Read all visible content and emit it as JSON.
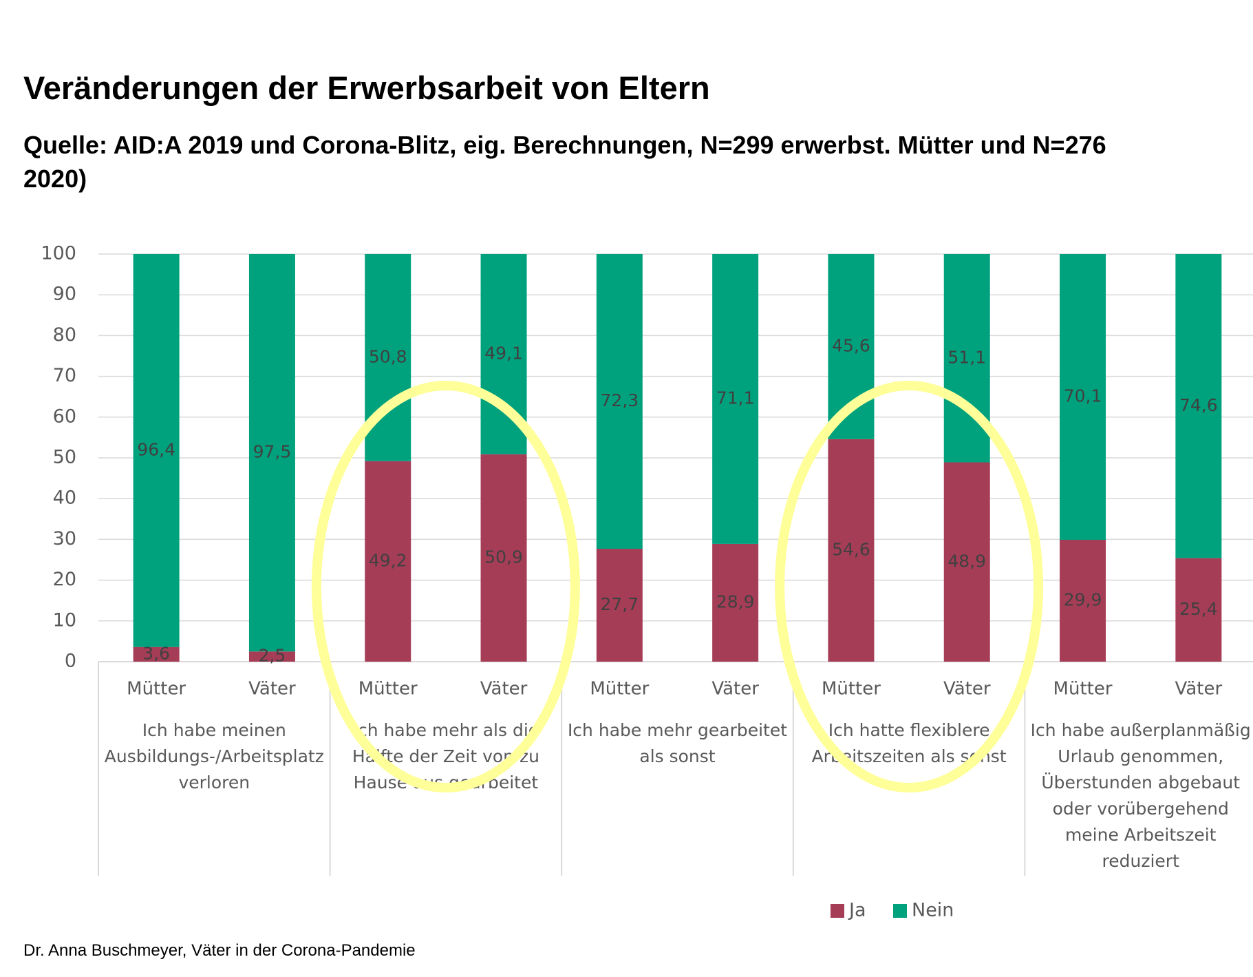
{
  "title": "Veränderungen der Erwerbsarbeit von Eltern",
  "subtitle_line1": "Quelle: AID:A 2019 und Corona-Blitz, eig. Berechnungen, N=299 erwerbst. Mütter und N=276",
  "subtitle_line2": "2020)",
  "footer": "Dr. Anna Buschmeyer, Väter in der Corona-Pandemie",
  "colors": {
    "ja": "#A63D57",
    "nein": "#00A27E",
    "grid": "#D9D9D9",
    "highlight": "#FFFF99"
  },
  "chart_data": {
    "type": "bar",
    "stacked": true,
    "ylim": [
      0,
      100
    ],
    "yticks": [
      "0",
      "10",
      "20",
      "30",
      "40",
      "50",
      "60",
      "70",
      "80",
      "90",
      "100"
    ],
    "legend_position": "bottom-right",
    "groups": [
      {
        "label_lines": [
          "Ich habe meinen",
          "Ausbildungs-/Arbeitsplatz",
          "verloren"
        ],
        "highlighted": false,
        "bars": [
          {
            "label": "Mütter",
            "ja": 3.6,
            "nein": 96.4,
            "ja_label": "3,6",
            "nein_label": "96,4"
          },
          {
            "label": "Väter",
            "ja": 2.5,
            "nein": 97.5,
            "ja_label": "2,5",
            "nein_label": "97,5"
          }
        ]
      },
      {
        "label_lines": [
          "Ich habe mehr als die",
          "Hälfte der Zeit von zu",
          "Hause aus gearbeitet"
        ],
        "highlighted": true,
        "bars": [
          {
            "label": "Mütter",
            "ja": 49.2,
            "nein": 50.8,
            "ja_label": "49,2",
            "nein_label": "50,8"
          },
          {
            "label": "Väter",
            "ja": 50.9,
            "nein": 49.1,
            "ja_label": "50,9",
            "nein_label": "49,1"
          }
        ]
      },
      {
        "label_lines": [
          "Ich habe mehr gearbeitet",
          "als sonst"
        ],
        "highlighted": false,
        "bars": [
          {
            "label": "Mütter",
            "ja": 27.7,
            "nein": 72.3,
            "ja_label": "27,7",
            "nein_label": "72,3"
          },
          {
            "label": "Väter",
            "ja": 28.9,
            "nein": 71.1,
            "ja_label": "28,9",
            "nein_label": "71,1"
          }
        ]
      },
      {
        "label_lines": [
          "Ich hatte flexiblere",
          "Arbeitszeiten als sonst"
        ],
        "highlighted": true,
        "bars": [
          {
            "label": "Mütter",
            "ja": 54.6,
            "nein": 45.6,
            "ja_label": "54,6",
            "nein_label": "45,6"
          },
          {
            "label": "Väter",
            "ja": 48.9,
            "nein": 51.1,
            "ja_label": "48,9",
            "nein_label": "51,1"
          }
        ]
      },
      {
        "label_lines": [
          "Ich habe außerplanmäßig",
          "Urlaub genommen,",
          "Überstunden abgebaut",
          "oder vorübergehend",
          "meine Arbeitszeit",
          "reduziert"
        ],
        "highlighted": false,
        "bars": [
          {
            "label": "Mütter",
            "ja": 29.9,
            "nein": 70.1,
            "ja_label": "29,9",
            "nein_label": "70,1"
          },
          {
            "label": "Väter",
            "ja": 25.4,
            "nein": 74.6,
            "ja_label": "25,4",
            "nein_label": "74,6"
          }
        ]
      }
    ],
    "legend": [
      {
        "key": "ja",
        "label": "Ja"
      },
      {
        "key": "nein",
        "label": "Nein"
      }
    ]
  }
}
